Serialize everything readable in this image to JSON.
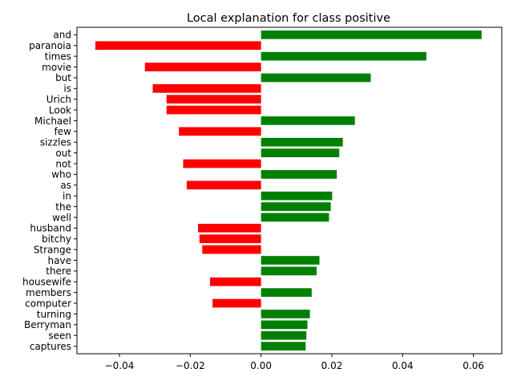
{
  "chart_data": {
    "type": "bar",
    "orientation": "horizontal",
    "title": "Local explanation for class positive",
    "xlabel": "",
    "ylabel": "",
    "xlim": [
      -0.052,
      0.068
    ],
    "xticks": [
      -0.04,
      -0.02,
      0.0,
      0.02,
      0.04,
      0.06
    ],
    "xtick_labels": [
      "−0.04",
      "−0.02",
      "0.00",
      "0.02",
      "0.04",
      "0.06"
    ],
    "grid": false,
    "positive_color": "#008000",
    "negative_color": "#ff0000",
    "categories": [
      "and",
      "paranoia",
      "times",
      "movie",
      "but",
      "is",
      "Urich",
      "Look",
      "Michael",
      "few",
      "sizzles",
      "out",
      "not",
      "who",
      "as",
      "in",
      "the",
      "well",
      "husband",
      "bitchy",
      "Strange",
      "have",
      "there",
      "housewife",
      "members",
      "computer",
      "turning",
      "Berryman",
      "seen",
      "captures"
    ],
    "values": [
      0.0623,
      -0.0468,
      0.0467,
      -0.0328,
      0.031,
      -0.0306,
      -0.0267,
      -0.0267,
      0.0265,
      -0.0232,
      0.0231,
      0.0221,
      -0.022,
      0.0214,
      -0.021,
      0.0201,
      0.0197,
      0.0192,
      -0.0178,
      -0.0174,
      -0.0166,
      0.0165,
      0.0157,
      -0.0144,
      0.0143,
      -0.0137,
      0.0138,
      0.0131,
      0.0128,
      0.0126
    ]
  }
}
